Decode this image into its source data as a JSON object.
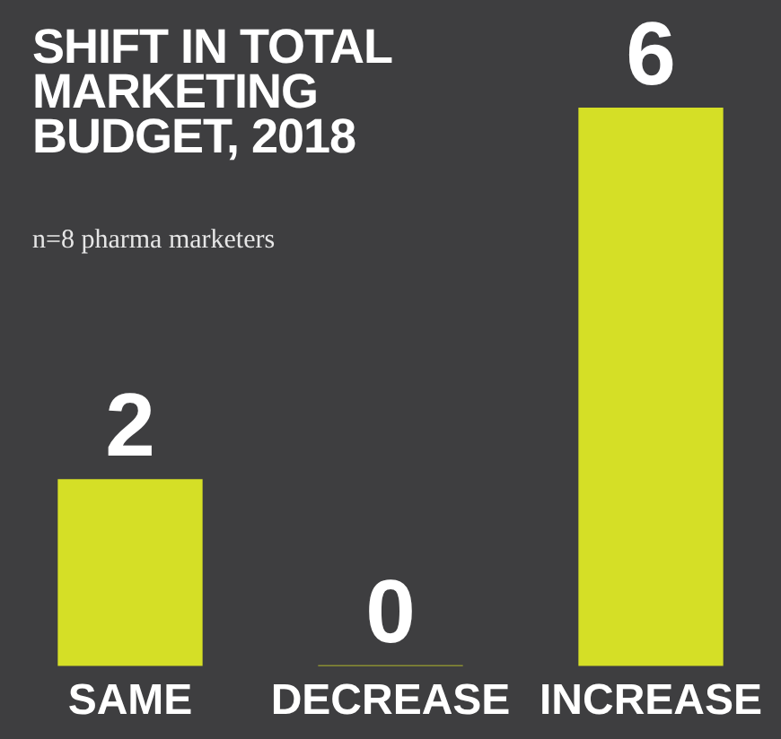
{
  "chart_data": {
    "type": "bar",
    "title": "SHIFT IN TOTAL MARKETING BUDGET, 2018",
    "subtitle": "n=8 pharma marketers",
    "categories": [
      "SAME",
      "DECREASE",
      "INCREASE"
    ],
    "values": [
      2,
      0,
      6
    ],
    "color": "#d5df26",
    "data_labels": true,
    "grid": false,
    "legend": false,
    "tick_labels": "x"
  }
}
